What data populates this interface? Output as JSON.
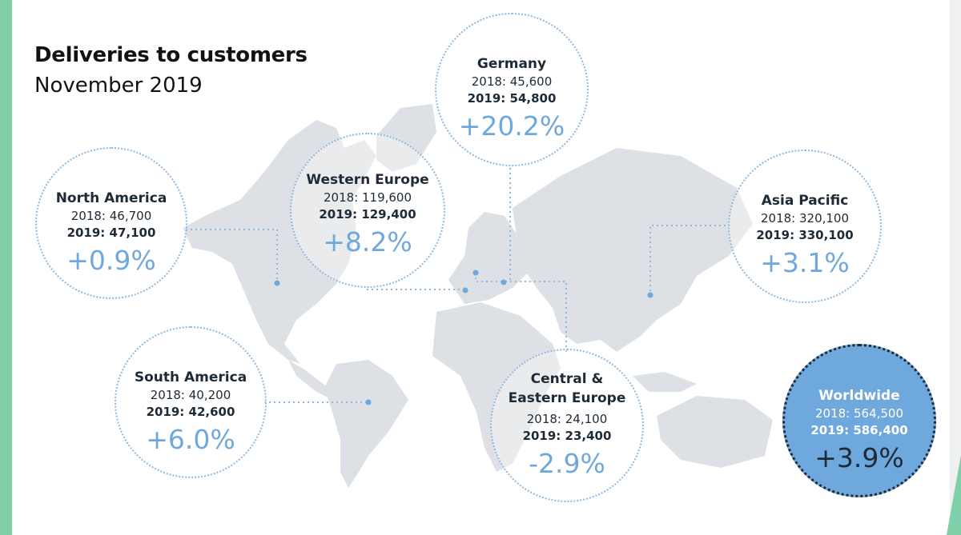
{
  "title": "Deliveries to customers",
  "subtitle": "November 2019",
  "chart_data": {
    "type": "map",
    "title": "Deliveries to customers",
    "subtitle": "November 2019",
    "regions": [
      {
        "name": "North America",
        "y2018": "2018: 46,700",
        "y2019": "2019: 47,100",
        "change": "+0.9%",
        "value_2018": 46700,
        "value_2019": 47100,
        "change_pct": 0.9
      },
      {
        "name": "Western Europe",
        "y2018": "2018: 119,600",
        "y2019": "2019: 129,400",
        "change": "+8.2%",
        "value_2018": 119600,
        "value_2019": 129400,
        "change_pct": 8.2
      },
      {
        "name": "Germany",
        "y2018": "2018: 45,600",
        "y2019": "2019: 54,800",
        "change": "+20.2%",
        "value_2018": 45600,
        "value_2019": 54800,
        "change_pct": 20.2
      },
      {
        "name": "Asia Pacific",
        "y2018": "2018: 320,100",
        "y2019": "2019: 330,100",
        "change": "+3.1%",
        "value_2018": 320100,
        "value_2019": 330100,
        "change_pct": 3.1
      },
      {
        "name": "South America",
        "y2018": "2018: 40,200",
        "y2019": "2019: 42,600",
        "change": "+6.0%",
        "value_2018": 40200,
        "value_2019": 42600,
        "change_pct": 6.0
      },
      {
        "name_line1": "Central &",
        "name_line2": "Eastern Europe",
        "y2018": "2018: 24,100",
        "y2019": "2019: 23,400",
        "change": "-2.9%",
        "value_2018": 24100,
        "value_2019": 23400,
        "change_pct": -2.9
      }
    ],
    "total": {
      "name": "Worldwide",
      "y2018": "2018: 564,500",
      "y2019": "2019: 586,400",
      "change": "+3.9%",
      "value_2018": 564500,
      "value_2019": 586400,
      "change_pct": 3.9
    },
    "colors": {
      "accent": "#6ea8dc",
      "map": "#dde0e4",
      "text": "#1e2a36",
      "side": "#7fd0a8"
    }
  }
}
